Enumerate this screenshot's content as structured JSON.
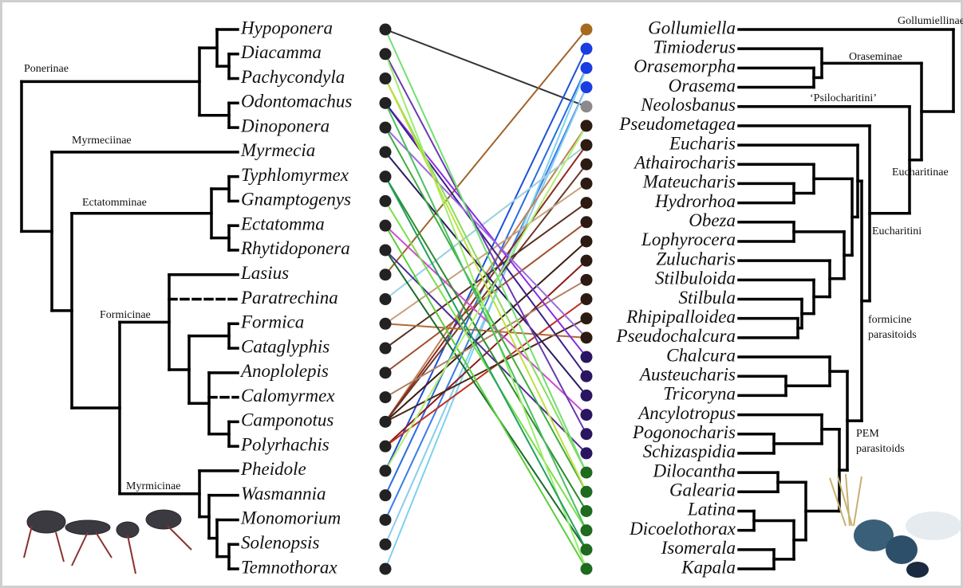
{
  "left_taxa": [
    "Hypoponera",
    "Diacamma",
    "Pachycondyla",
    "Odontomachus",
    "Dinoponera",
    "Myrmecia",
    "Typhlomyrmex",
    "Gnamptogenys",
    "Ectatomma",
    "Rhytidoponera",
    "Lasius",
    "Paratrechina",
    "Formica",
    "Cataglyphis",
    "Anoplolepis",
    "Calomyrmex",
    "Camponotus",
    "Polyrhachis",
    "Pheidole",
    "Wasmannia",
    "Monomorium",
    "Solenopsis",
    "Temnothorax"
  ],
  "left_clades": [
    "Ponerinae",
    "Myrmeciinae",
    "Ectatomminae",
    "Formicinae",
    "Myrmicinae"
  ],
  "right_taxa": [
    "Gollumiella",
    "Timioderus",
    "Orasemorpha",
    "Orasema",
    "Neolosbanus",
    "Pseudometagea",
    "Eucharis",
    "Athairocharis",
    "Mateucharis",
    "Hydrorhoa",
    "Obeza",
    "Lophyrocera",
    "Zulucharis",
    "Stilbuloida",
    "Stilbula",
    "Rhipipalloidea",
    "Pseudochalcura",
    "Chalcura",
    "Austeucharis",
    "Tricoryna",
    "Ancylotropus",
    "Pogonocharis",
    "Schizaspidia",
    "Dilocantha",
    "Galearia",
    "Latina",
    "Dicoelothorax",
    "Isomerala",
    "Kapala"
  ],
  "right_clades": [
    "Gollumiellinae",
    "Oraseminae",
    "‘Psilocharitini’",
    "Eucharitinae",
    "Eucharitini",
    [
      "formicine",
      "parasitoids"
    ],
    [
      "PEM",
      "parasitoids"
    ]
  ]
}
